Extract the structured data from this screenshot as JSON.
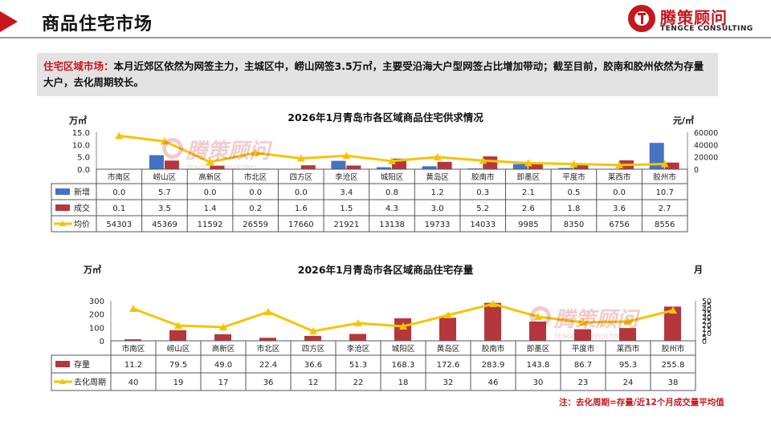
{
  "header": {
    "title": "商品住宅市场",
    "logo_cn": "腾策顾问",
    "logo_en": "TENGCE CONSULTING"
  },
  "summary": {
    "label": "住宅区域市场：",
    "text": "本月近郊区依然为网签主力，主城区中，崂山网签3.5万㎡，主要受沿海大户型网签占比增加带动；截至目前，胶南和胶州依然为存量大户，去化周期较长。"
  },
  "chart_data": [
    {
      "type": "bar",
      "title": "2026年1月青岛市各区域商品住宅供求情况",
      "left_unit": "万㎡",
      "right_unit": "元/㎡",
      "categories": [
        "市南区",
        "崂山区",
        "高新区",
        "市北区",
        "四方区",
        "李沧区",
        "城阳区",
        "黄岛区",
        "胶南市",
        "即墨区",
        "平度市",
        "莱西市",
        "胶州市"
      ],
      "ylim_left": [
        0,
        15
      ],
      "yticks_left": [
        "0.0",
        "5.0",
        "10.0",
        "15.0"
      ],
      "ylim_right": [
        0,
        60000
      ],
      "yticks_right": [
        "0",
        "20000",
        "40000",
        "60000"
      ],
      "series": [
        {
          "name": "新增",
          "type": "bar",
          "axis": "left",
          "color": "#4472c4",
          "values": [
            0.0,
            5.7,
            0.0,
            0.0,
            0.0,
            3.4,
            0.8,
            1.2,
            0.3,
            2.1,
            0.5,
            0.0,
            10.7
          ],
          "labels": [
            "0.0",
            "5.7",
            "0.0",
            "0.0",
            "0.0",
            "3.4",
            "0.8",
            "1.2",
            "0.3",
            "2.1",
            "0.5",
            "0.0",
            "10.7"
          ]
        },
        {
          "name": "成交",
          "type": "bar",
          "axis": "left",
          "color": "#b5373d",
          "values": [
            0.1,
            3.5,
            1.4,
            0.2,
            1.6,
            1.5,
            4.3,
            3.0,
            5.2,
            2.6,
            1.8,
            3.6,
            2.7
          ],
          "labels": [
            "0.1",
            "3.5",
            "1.4",
            "0.2",
            "1.6",
            "1.5",
            "4.3",
            "3.0",
            "5.2",
            "2.6",
            "1.8",
            "3.6",
            "2.7"
          ]
        },
        {
          "name": "均价",
          "type": "line",
          "axis": "right",
          "color": "#f5c400",
          "values": [
            54303,
            45369,
            11592,
            26559,
            17660,
            21921,
            13138,
            19733,
            14033,
            9985,
            8350,
            6756,
            8556
          ],
          "labels": [
            "54303",
            "45369",
            "11592",
            "26559",
            "17660",
            "21921",
            "13138",
            "19733",
            "14033",
            "9985",
            "8350",
            "6756",
            "8556"
          ]
        }
      ]
    },
    {
      "type": "bar",
      "title": "2026年1月青岛市各区域商品住宅存量",
      "left_unit": "万㎡",
      "right_unit": "月",
      "categories": [
        "市南区",
        "崂山区",
        "高新区",
        "市北区",
        "四方区",
        "李沧区",
        "城阳区",
        "黄岛区",
        "胶南市",
        "即墨区",
        "平度市",
        "莱西市",
        "胶州市"
      ],
      "ylim_left": [
        0,
        300
      ],
      "yticks_left": [
        "0",
        "100",
        "200",
        "300"
      ],
      "ylim_right": [
        0,
        50
      ],
      "yticks_right": [
        "0",
        "5",
        "10",
        "15",
        "20",
        "25",
        "30",
        "35",
        "40",
        "45",
        "50"
      ],
      "series": [
        {
          "name": "存量",
          "type": "bar",
          "axis": "left",
          "color": "#b5373d",
          "values": [
            11.2,
            79.5,
            49.0,
            22.4,
            36.6,
            51.3,
            168.3,
            172.6,
            283.9,
            143.8,
            86.7,
            95.3,
            255.8
          ],
          "labels": [
            "11.2",
            "79.5",
            "49.0",
            "22.4",
            "36.6",
            "51.3",
            "168.3",
            "172.6",
            "283.9",
            "143.8",
            "86.7",
            "95.3",
            "255.8"
          ]
        },
        {
          "name": "去化周期",
          "type": "line",
          "axis": "right",
          "color": "#f5c400",
          "values": [
            40,
            19,
            17,
            36,
            12,
            22,
            18,
            32,
            46,
            30,
            23,
            24,
            38
          ],
          "labels": [
            "40",
            "19",
            "17",
            "36",
            "12",
            "22",
            "18",
            "32",
            "46",
            "30",
            "23",
            "24",
            "38"
          ]
        }
      ]
    }
  ],
  "note": "注：去化周期=存量/近12个月成交量平均值",
  "watermark": {
    "cn": "腾策顾问",
    "en": "TENGCE CONSULTING"
  }
}
